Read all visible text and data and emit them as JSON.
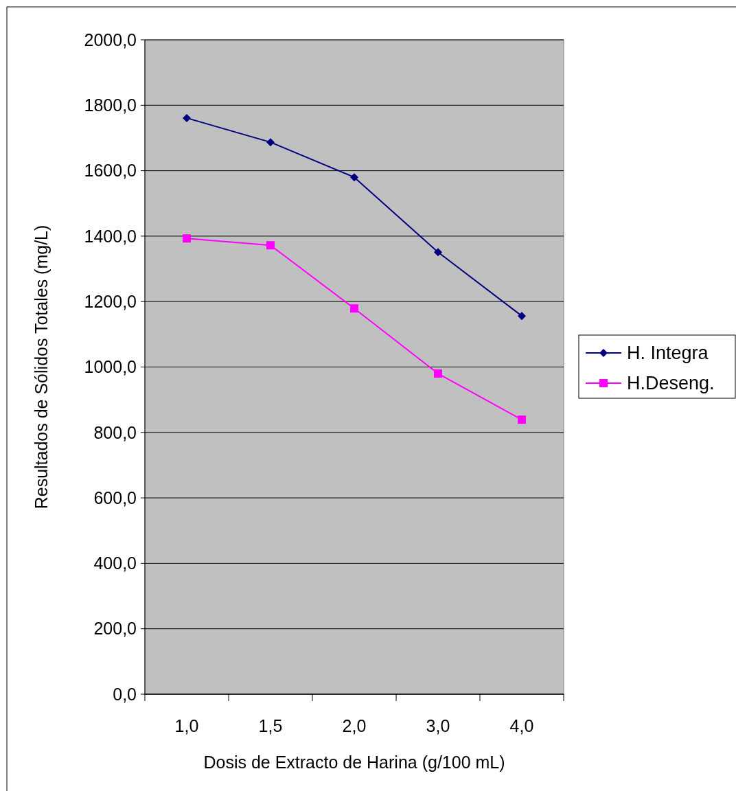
{
  "chart_data": {
    "type": "line",
    "xlabel": "Dosis de Extracto de Harina (g/100 mL)",
    "ylabel": "Resultados de Sólidos Totales (mg/L)",
    "categories": [
      "1,0",
      "1,5",
      "2,0",
      "3,0",
      "4,0"
    ],
    "series": [
      {
        "name": "H. Integra",
        "color": "#000080",
        "marker": "diamond",
        "values": [
          1761,
          1687,
          1580,
          1351,
          1156
        ]
      },
      {
        "name": "H.Deseng.",
        "color": "#ff00ff",
        "marker": "square",
        "values": [
          1393,
          1372,
          1179,
          980,
          839
        ]
      }
    ],
    "ylim": [
      0,
      2000
    ],
    "yticks": [
      {
        "value": 0,
        "label": "0,0"
      },
      {
        "value": 200,
        "label": "200,0"
      },
      {
        "value": 400,
        "label": "400,0"
      },
      {
        "value": 600,
        "label": "600,0"
      },
      {
        "value": 800,
        "label": "800,0"
      },
      {
        "value": 1000,
        "label": "1000,0"
      },
      {
        "value": 1200,
        "label": "1200,0"
      },
      {
        "value": 1400,
        "label": "1400,0"
      },
      {
        "value": 1600,
        "label": "1600,0"
      },
      {
        "value": 1800,
        "label": "1800,0"
      },
      {
        "value": 2000,
        "label": "2000,0"
      }
    ],
    "grid": "y",
    "legend": "right",
    "line_style": "solid"
  }
}
